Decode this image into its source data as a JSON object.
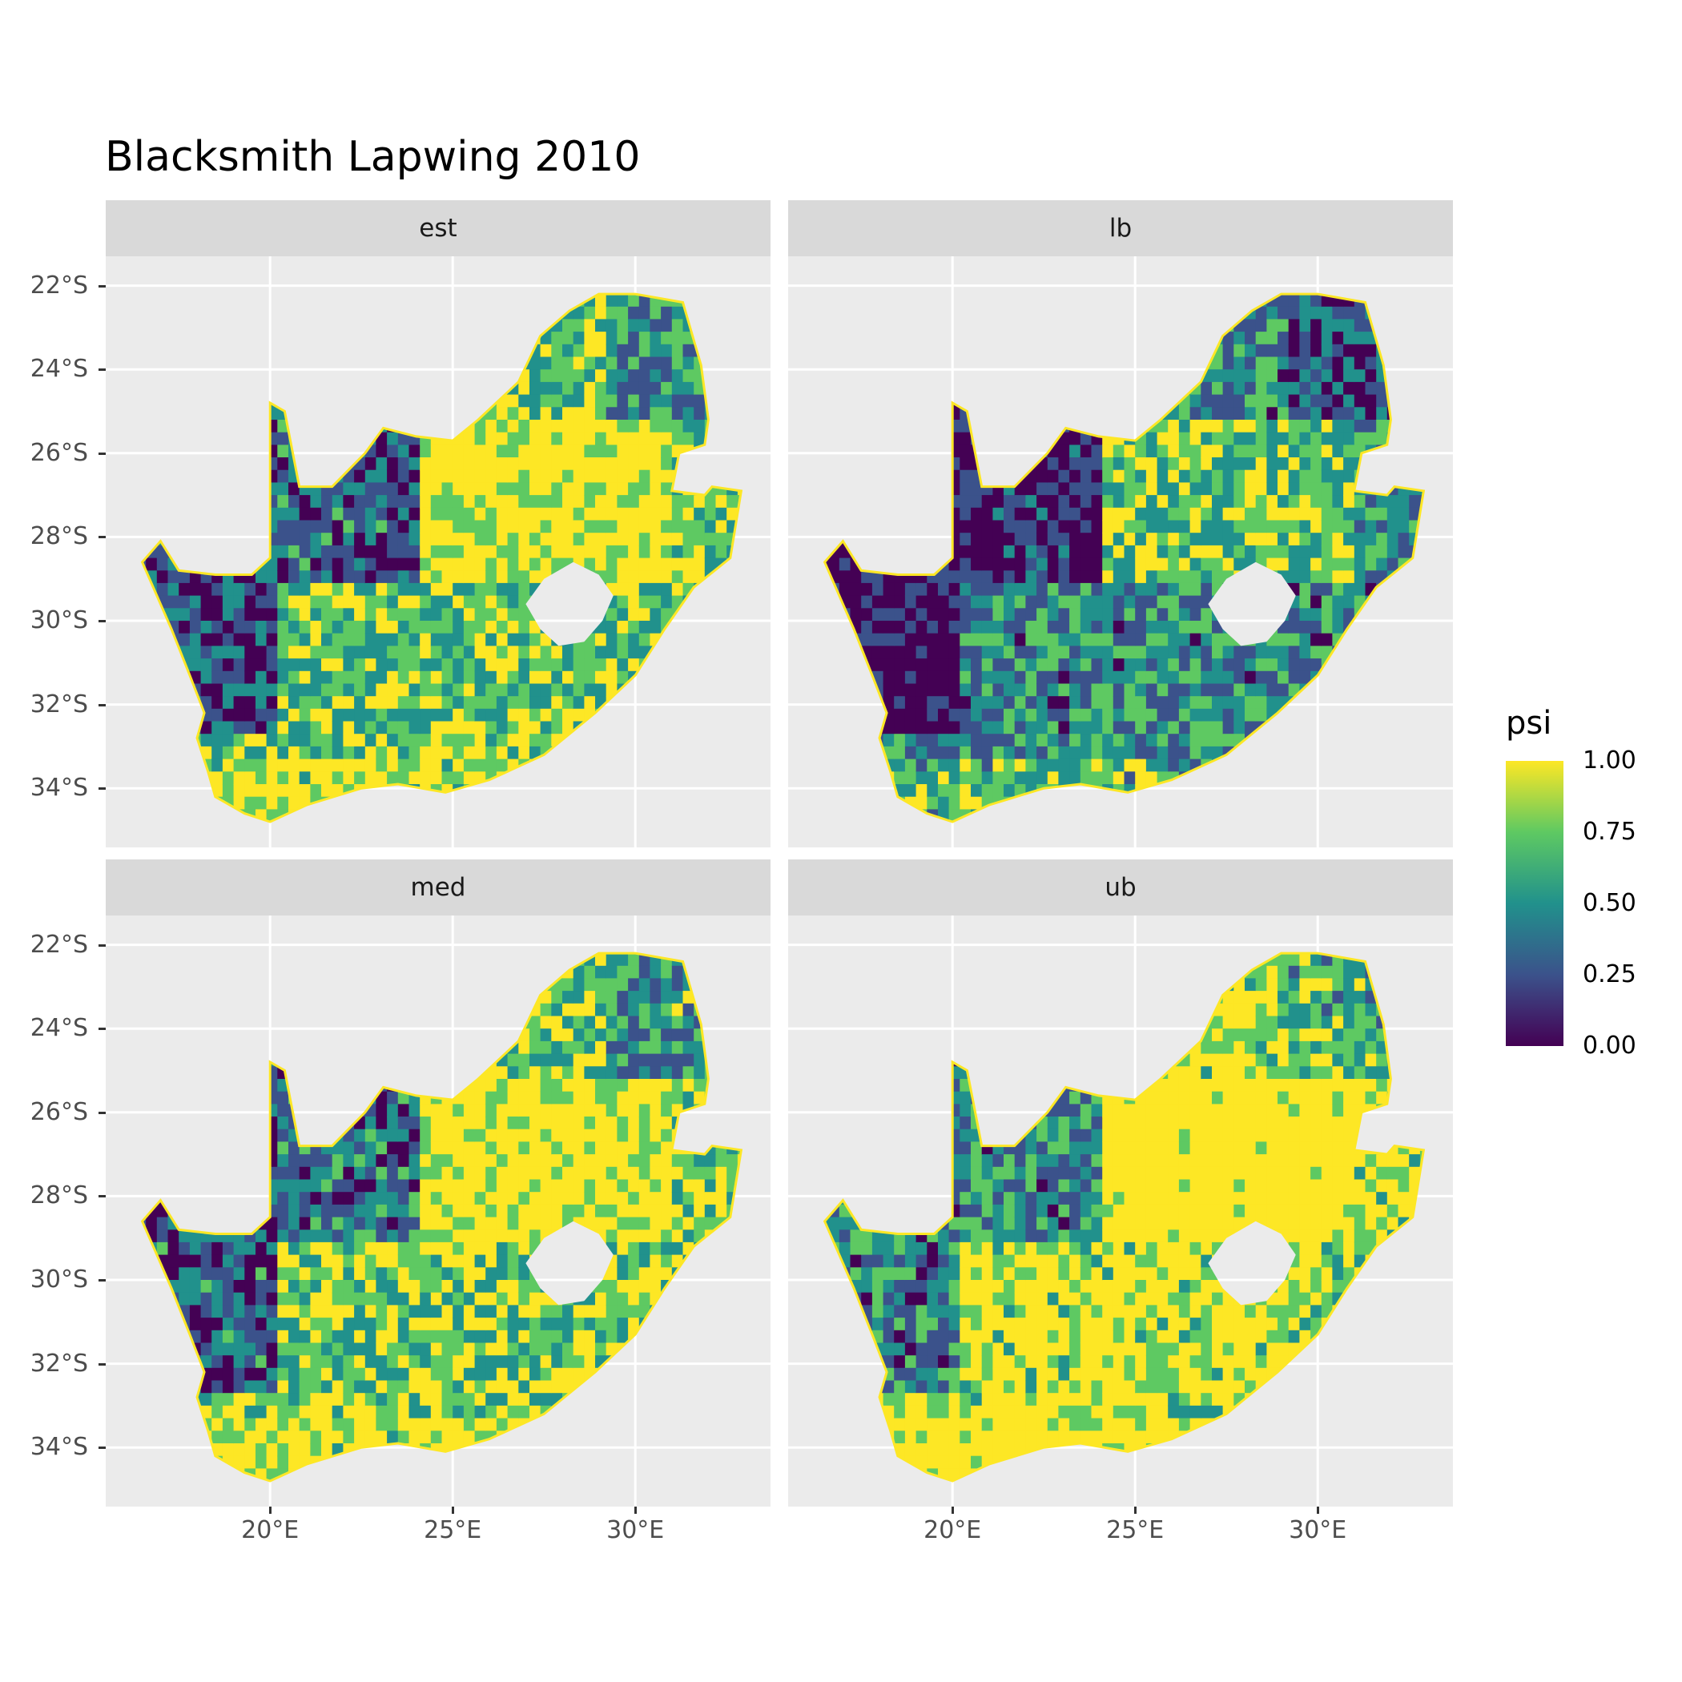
{
  "title": "Blacksmith Lapwing 2010",
  "panels": [
    {
      "label": "est",
      "key": "est"
    },
    {
      "label": "lb",
      "key": "lb"
    },
    {
      "label": "med",
      "key": "med"
    },
    {
      "label": "ub",
      "key": "ub"
    }
  ],
  "y_axis": {
    "ticks": [
      "22°S",
      "24°S",
      "26°S",
      "28°S",
      "30°S",
      "32°S",
      "34°S"
    ]
  },
  "x_axis": {
    "ticks": [
      "20°E",
      "25°E",
      "30°E"
    ]
  },
  "legend": {
    "title": "psi",
    "ticks": [
      "1.00",
      "0.75",
      "0.50",
      "0.25",
      "0.00"
    ],
    "colors": [
      "#440154",
      "#3b528b",
      "#21918c",
      "#5ec962",
      "#fde725"
    ]
  },
  "map": {
    "region": "South Africa",
    "lon_range": [
      15.5,
      33.6
    ],
    "lat_range": [
      -35.3,
      -21.3
    ],
    "fill_variable": "psi"
  }
}
